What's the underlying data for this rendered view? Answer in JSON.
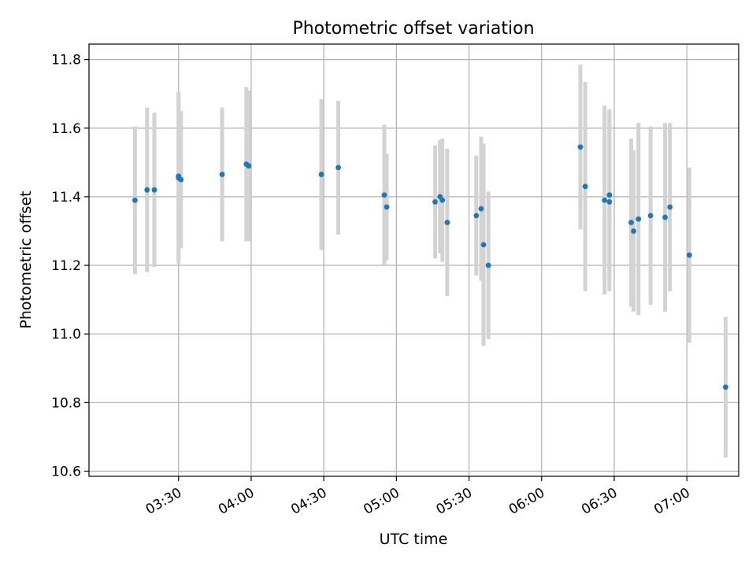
{
  "chart_data": {
    "type": "scatter",
    "title": "Photometric offset variation",
    "xlabel": "UTC time",
    "ylabel": "Photometric offset",
    "x_tick_labels": [
      "03:30",
      "04:00",
      "04:30",
      "05:00",
      "05:30",
      "06:00",
      "06:30",
      "07:00"
    ],
    "x_tick_minutes": [
      210,
      240,
      270,
      300,
      330,
      360,
      390,
      420
    ],
    "xlim_minutes": [
      173.0,
      441.4
    ],
    "y_ticks": [
      10.6,
      10.8,
      11.0,
      11.2,
      11.4,
      11.6,
      11.8
    ],
    "y_tick_labels": [
      "10.6",
      "10.8",
      "11.0",
      "11.2",
      "11.4",
      "11.6",
      "11.8"
    ],
    "ylim": [
      10.585,
      11.845
    ],
    "grid": true,
    "colors": {
      "point": "#1f77b4",
      "errorbar": "#d3d3d3",
      "grid": "#b0b0b0"
    },
    "points": [
      {
        "time": "03:12",
        "y": 11.39,
        "err": 0.215
      },
      {
        "time": "03:17",
        "y": 11.42,
        "err": 0.24
      },
      {
        "time": "03:20",
        "y": 11.42,
        "err": 0.225
      },
      {
        "time": "03:30",
        "y": 11.455,
        "err": 0.25
      },
      {
        "time": "03:30",
        "y": 11.46,
        "err": 0.245
      },
      {
        "time": "03:31",
        "y": 11.45,
        "err": 0.2
      },
      {
        "time": "03:48",
        "y": 11.465,
        "err": 0.195
      },
      {
        "time": "03:58",
        "y": 11.495,
        "err": 0.225
      },
      {
        "time": "03:59",
        "y": 11.49,
        "err": 0.22
      },
      {
        "time": "04:29",
        "y": 11.465,
        "err": 0.22
      },
      {
        "time": "04:36",
        "y": 11.485,
        "err": 0.195
      },
      {
        "time": "04:55",
        "y": 11.405,
        "err": 0.205
      },
      {
        "time": "04:56",
        "y": 11.37,
        "err": 0.155
      },
      {
        "time": "05:16",
        "y": 11.385,
        "err": 0.165
      },
      {
        "time": "05:18",
        "y": 11.4,
        "err": 0.165
      },
      {
        "time": "05:19",
        "y": 11.39,
        "err": 0.18
      },
      {
        "time": "05:21",
        "y": 11.325,
        "err": 0.215
      },
      {
        "time": "05:33",
        "y": 11.345,
        "err": 0.175
      },
      {
        "time": "05:35",
        "y": 11.365,
        "err": 0.21
      },
      {
        "time": "05:36",
        "y": 11.26,
        "err": 0.295
      },
      {
        "time": "05:38",
        "y": 11.2,
        "err": 0.215
      },
      {
        "time": "06:16",
        "y": 11.545,
        "err": 0.24
      },
      {
        "time": "06:18",
        "y": 11.43,
        "err": 0.305
      },
      {
        "time": "06:26",
        "y": 11.39,
        "err": 0.275
      },
      {
        "time": "06:28",
        "y": 11.385,
        "err": 0.26
      },
      {
        "time": "06:28",
        "y": 11.405,
        "err": 0.25
      },
      {
        "time": "06:37",
        "y": 11.325,
        "err": 0.245
      },
      {
        "time": "06:38",
        "y": 11.3,
        "err": 0.235
      },
      {
        "time": "06:40",
        "y": 11.335,
        "err": 0.28
      },
      {
        "time": "06:45",
        "y": 11.345,
        "err": 0.26
      },
      {
        "time": "06:51",
        "y": 11.34,
        "err": 0.275
      },
      {
        "time": "06:53",
        "y": 11.37,
        "err": 0.245
      },
      {
        "time": "07:01",
        "y": 11.23,
        "err": 0.255
      },
      {
        "time": "07:16",
        "y": 10.845,
        "err": 0.205
      }
    ]
  }
}
